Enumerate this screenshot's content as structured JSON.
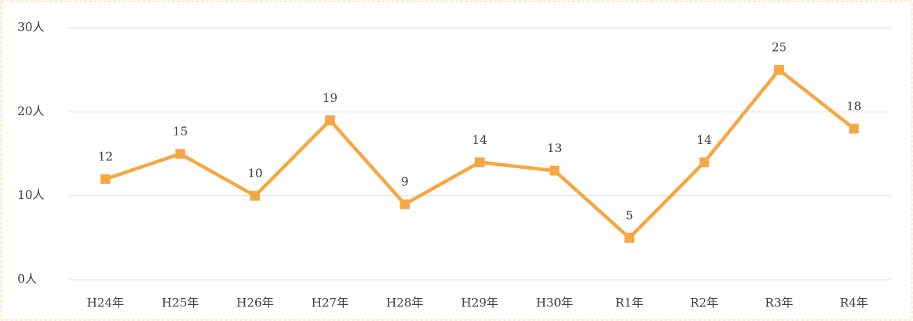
{
  "chart_data": {
    "type": "line",
    "categories": [
      "H24年",
      "H25年",
      "H26年",
      "H27年",
      "H28年",
      "H29年",
      "H30年",
      "R1年",
      "R2年",
      "R3年",
      "R4年"
    ],
    "series": [
      {
        "color": "#f5a742",
        "values": [
          12,
          15,
          10,
          19,
          9,
          14,
          13,
          5,
          14,
          25,
          18
        ]
      }
    ],
    "ylim": [
      0,
      30
    ],
    "yticks": [
      {
        "value": 0,
        "label": "0人"
      },
      {
        "value": 10,
        "label": "10人"
      },
      {
        "value": 20,
        "label": "20人"
      },
      {
        "value": 30,
        "label": "30人"
      }
    ],
    "grid": true
  }
}
